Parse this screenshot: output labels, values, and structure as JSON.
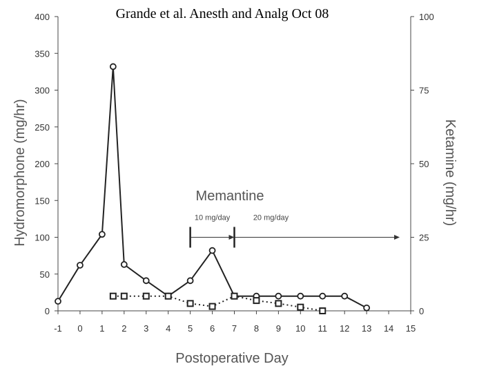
{
  "header": {
    "citation": "Grande et al.  Anesth and Analg Oct 08"
  },
  "chart_data": {
    "type": "line",
    "xlabel": "Postoperative Day",
    "ylabel": "Hydromorphone (mg/hr)",
    "y2label": "Ketamine (mg/hr)",
    "xlim": [
      -1,
      15
    ],
    "ylim": [
      0,
      400
    ],
    "y2lim": [
      0,
      100
    ],
    "xticks": [
      "-1",
      "0",
      "1",
      "2",
      "3",
      "4",
      "5",
      "6",
      "7",
      "8",
      "9",
      "10",
      "11",
      "12",
      "13",
      "14",
      "15"
    ],
    "yticks": [
      "0",
      "50",
      "100",
      "150",
      "200",
      "250",
      "300",
      "350",
      "400"
    ],
    "y2ticks": [
      "0",
      "25",
      "50",
      "75",
      "100"
    ],
    "grid": false,
    "legend": "none",
    "series": [
      {
        "axis": "left",
        "style": "solid",
        "marker": "circle",
        "color": "#222222",
        "x": [
          -1,
          0,
          1,
          1.5,
          2,
          3,
          4,
          5,
          6,
          7,
          8,
          9,
          10,
          11,
          12,
          13
        ],
        "y": [
          13,
          62,
          104,
          332,
          63,
          41,
          20,
          41,
          82,
          20,
          20,
          20,
          20,
          20,
          20,
          4
        ]
      },
      {
        "axis": "right",
        "style": "dotted",
        "marker": "square",
        "color": "#222222",
        "x": [
          1.5,
          2,
          3,
          4,
          5,
          6,
          7,
          8,
          9,
          10,
          11
        ],
        "y": [
          5,
          5,
          5,
          5,
          2.5,
          1.5,
          5,
          3.5,
          2.5,
          1.25,
          0
        ]
      }
    ],
    "annotations": {
      "title": "Memantine",
      "phases": [
        {
          "label": "10 mg/day",
          "start": 5,
          "end": 7
        },
        {
          "label": "20 mg/day",
          "start": 7,
          "end": 14.5
        }
      ],
      "marker_level": 100
    }
  }
}
